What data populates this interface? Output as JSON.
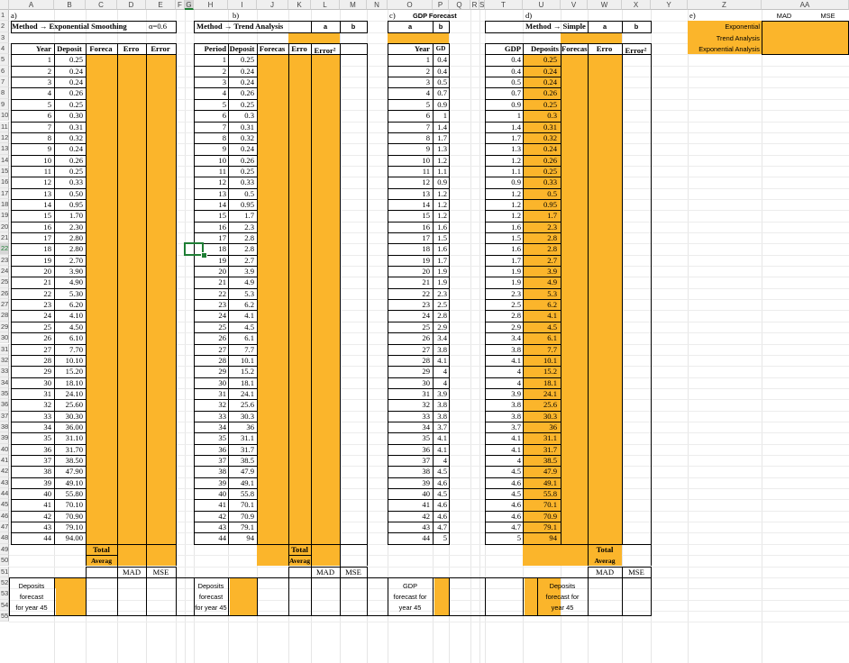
{
  "columns": [
    "A",
    "B",
    "C",
    "D",
    "E",
    "F",
    "G",
    "H",
    "I",
    "J",
    "K",
    "L",
    "M",
    "N",
    "O",
    "P",
    "Q",
    "R",
    "S",
    "T",
    "U",
    "V",
    "W",
    "X",
    "Y",
    "Z",
    "AA"
  ],
  "rows": [
    "1",
    "2",
    "3",
    "4",
    "5",
    "6",
    "7",
    "8",
    "9",
    "10",
    "11",
    "12",
    "13",
    "14",
    "15",
    "16",
    "17",
    "18",
    "19",
    "20",
    "21",
    "22",
    "23",
    "24",
    "25",
    "26",
    "27",
    "28",
    "29",
    "30",
    "31",
    "32",
    "33",
    "34",
    "35",
    "36",
    "37",
    "38",
    "39",
    "40",
    "41",
    "42",
    "43",
    "44",
    "45",
    "46",
    "47",
    "48",
    "49",
    "50",
    "51",
    "52",
    "53",
    "54",
    "55"
  ],
  "selected_row": "22",
  "selected_col": "G",
  "accent_color": "#fbb52b",
  "selection_color": "#1e7e34",
  "blockA": {
    "label": "a)",
    "method": "Method → Exponential Smoothing",
    "alpha": "α=0.6",
    "headers": [
      "Year",
      "Deposit",
      "Foreca",
      "Erro",
      "Error"
    ],
    "total": "Total",
    "average": "Averag",
    "mad": "MAD",
    "mse": "MSE",
    "forecast_label": [
      "Deposits",
      "forecast",
      "for year 45"
    ]
  },
  "blockB": {
    "label": "b)",
    "method": "Method → Trend Analysis",
    "a": "a",
    "b": "b",
    "headers": [
      "Period",
      "Deposit",
      "Forecas",
      "Erro",
      "Error²"
    ],
    "total": "Total",
    "average": "Averag",
    "mad": "MAD",
    "mse": "MSE",
    "forecast_label": [
      "Deposits",
      "forecast",
      "for year 45"
    ]
  },
  "blockC": {
    "label": "c)",
    "title": "GDP Forecast",
    "a": "a",
    "b": "b",
    "headers": [
      "Year",
      "GD"
    ],
    "forecast_label": [
      "GDP",
      "forecast for",
      "year 45"
    ]
  },
  "blockD": {
    "label": "d)",
    "method": "Method → Simple",
    "a": "a",
    "b": "b",
    "headers": [
      "GDP",
      "Deposits",
      "Forecas",
      "Erro",
      "Error²"
    ],
    "total": "Total",
    "average": "Averag",
    "mad": "MAD",
    "mse": "MSE",
    "forecast_label": [
      "Deposits",
      "forecast for",
      "year 45"
    ]
  },
  "blockE": {
    "label": "e)",
    "mad": "MAD",
    "mse": "MSE",
    "methods": [
      "Exponential",
      "Trend Analysis",
      "Exponential Analysis"
    ]
  },
  "years": [
    "1",
    "2",
    "3",
    "4",
    "5",
    "6",
    "7",
    "8",
    "9",
    "10",
    "11",
    "12",
    "13",
    "14",
    "15",
    "16",
    "17",
    "18",
    "19",
    "20",
    "21",
    "22",
    "23",
    "24",
    "25",
    "26",
    "27",
    "28",
    "29",
    "30",
    "31",
    "32",
    "33",
    "34",
    "35",
    "36",
    "37",
    "38",
    "39",
    "40",
    "41",
    "42",
    "43",
    "44"
  ],
  "deposits_a": [
    "0.25",
    "0.24",
    "0.24",
    "0.26",
    "0.25",
    "0.30",
    "0.31",
    "0.32",
    "0.24",
    "0.26",
    "0.25",
    "0.33",
    "0.50",
    "0.95",
    "1.70",
    "2.30",
    "2.80",
    "2.80",
    "2.70",
    "3.90",
    "4.90",
    "5.30",
    "6.20",
    "4.10",
    "4.50",
    "6.10",
    "7.70",
    "10.10",
    "15.20",
    "18.10",
    "24.10",
    "25.60",
    "30.30",
    "36.00",
    "31.10",
    "31.70",
    "38.50",
    "47.90",
    "49.10",
    "55.80",
    "70.10",
    "70.90",
    "79.10",
    "94.00"
  ],
  "deposits_b": [
    "0.25",
    "0.24",
    "0.24",
    "0.26",
    "0.25",
    "0.3",
    "0.31",
    "0.32",
    "0.24",
    "0.26",
    "0.25",
    "0.33",
    "0.5",
    "0.95",
    "1.7",
    "2.3",
    "2.8",
    "2.8",
    "2.7",
    "3.9",
    "4.9",
    "5.3",
    "6.2",
    "4.1",
    "4.5",
    "6.1",
    "7.7",
    "10.1",
    "15.2",
    "18.1",
    "24.1",
    "25.6",
    "30.3",
    "36",
    "31.1",
    "31.7",
    "38.5",
    "47.9",
    "49.1",
    "55.8",
    "70.1",
    "70.9",
    "79.1",
    "94"
  ],
  "gdp": [
    "0.4",
    "0.4",
    "0.5",
    "0.7",
    "0.9",
    "1",
    "1.4",
    "1.7",
    "1.3",
    "1.2",
    "1.1",
    "0.9",
    "1.2",
    "1.2",
    "1.2",
    "1.6",
    "1.5",
    "1.6",
    "1.7",
    "1.9",
    "1.9",
    "2.3",
    "2.5",
    "2.8",
    "2.9",
    "3.4",
    "3.8",
    "4.1",
    "4",
    "4",
    "3.9",
    "3.8",
    "3.8",
    "3.7",
    "4.1",
    "4.1",
    "4",
    "4.5",
    "4.6",
    "4.5",
    "4.6",
    "4.6",
    "4.7",
    "5"
  ]
}
